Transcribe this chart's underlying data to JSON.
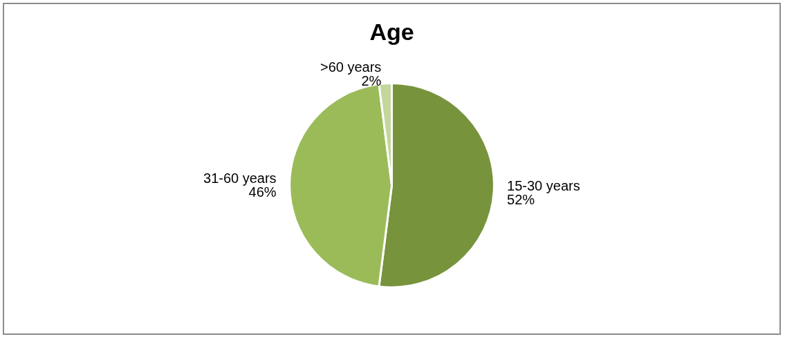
{
  "chart_data": {
    "type": "pie",
    "title": "Age",
    "categories": [
      "15-30 years",
      "31-60 years",
      ">60 years"
    ],
    "values": [
      52,
      46,
      2
    ],
    "value_labels": [
      "52%",
      "46%",
      "2%"
    ],
    "colors": [
      "#77933c",
      "#9bbb59",
      "#c3d69b"
    ]
  }
}
